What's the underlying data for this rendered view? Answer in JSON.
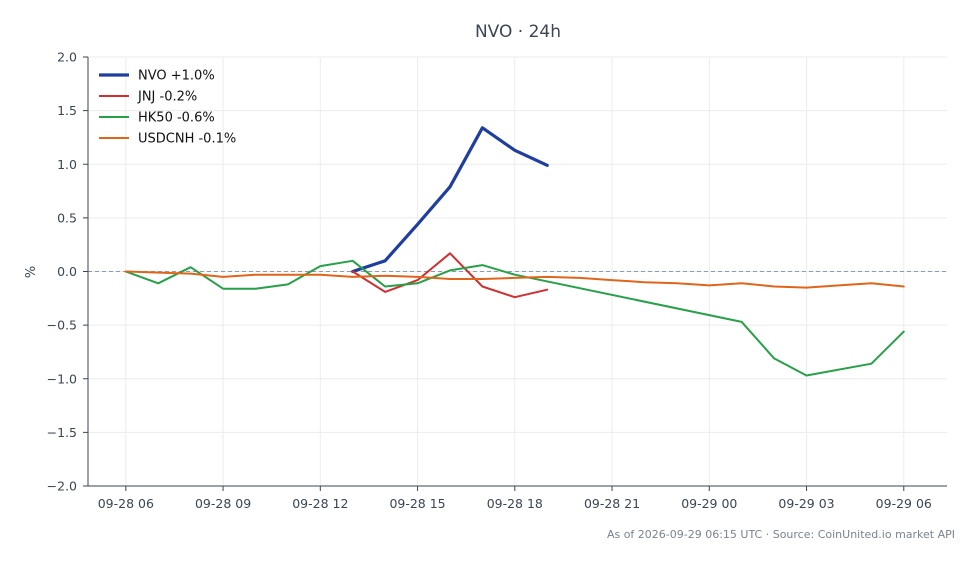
{
  "chart_data": {
    "type": "line",
    "title": "NVO · 24h",
    "xlabel": "",
    "ylabel": "%",
    "ylim": [
      -2.0,
      2.0
    ],
    "yticks": [
      -2.0,
      -1.5,
      -1.0,
      -0.5,
      0.0,
      0.5,
      1.0,
      1.5,
      2.0
    ],
    "ytick_labels": [
      "−2.0",
      "−1.5",
      "−1.0",
      "−0.5",
      "0.0",
      "0.5",
      "1.0",
      "1.5",
      "2.0"
    ],
    "xlim": [
      "2026-09-28 04:50",
      "2026-09-29 07:20"
    ],
    "xticks": [
      "2026-09-28 06:00",
      "2026-09-28 09:00",
      "2026-09-28 12:00",
      "2026-09-28 15:00",
      "2026-09-28 18:00",
      "2026-09-28 21:00",
      "2026-09-29 00:00",
      "2026-09-29 03:00",
      "2026-09-29 06:00"
    ],
    "xtick_labels": [
      "09-28 06",
      "09-28 09",
      "09-28 12",
      "09-28 15",
      "09-28 18",
      "09-28 21",
      "09-29 00",
      "09-29 03",
      "09-29 06"
    ],
    "grid": true,
    "zero_line": true,
    "legend_position": "top-left",
    "series": [
      {
        "name": "NVO +1.0%",
        "color": "#1f3fa0",
        "x": [
          "2026-09-28 13:00",
          "2026-09-28 14:00",
          "2026-09-28 15:00",
          "2026-09-28 16:00",
          "2026-09-28 17:00",
          "2026-09-28 18:00",
          "2026-09-28 19:00"
        ],
        "y": [
          0.0,
          0.1,
          0.44,
          0.79,
          1.34,
          1.13,
          0.99
        ]
      },
      {
        "name": "JNJ -0.2%",
        "color": "#d03030",
        "x": [
          "2026-09-28 13:00",
          "2026-09-28 14:00",
          "2026-09-28 15:00",
          "2026-09-28 16:00",
          "2026-09-28 17:00",
          "2026-09-28 18:00",
          "2026-09-28 19:00"
        ],
        "y": [
          0.0,
          -0.19,
          -0.08,
          0.17,
          -0.14,
          -0.24,
          -0.17
        ]
      },
      {
        "name": "HK50 -0.6%",
        "color": "#27a048",
        "x": [
          "2026-09-28 06:00",
          "2026-09-28 07:00",
          "2026-09-28 08:00",
          "2026-09-28 09:00",
          "2026-09-28 10:00",
          "2026-09-28 11:00",
          "2026-09-28 12:00",
          "2026-09-28 13:00",
          "2026-09-28 14:00",
          "2026-09-28 15:00",
          "2026-09-28 16:00",
          "2026-09-28 17:00",
          "2026-09-28 18:00",
          "2026-09-29 01:00",
          "2026-09-29 02:00",
          "2026-09-29 03:00",
          "2026-09-29 05:00",
          "2026-09-29 06:00"
        ],
        "y": [
          0.0,
          -0.11,
          0.04,
          -0.16,
          -0.16,
          -0.12,
          0.05,
          0.1,
          -0.14,
          -0.11,
          0.01,
          0.06,
          -0.03,
          -0.47,
          -0.81,
          -0.97,
          -0.86,
          -0.56
        ]
      },
      {
        "name": "USDCNH -0.1%",
        "color": "#e0651a",
        "x": [
          "2026-09-28 06:00",
          "2026-09-28 07:00",
          "2026-09-28 08:00",
          "2026-09-28 09:00",
          "2026-09-28 10:00",
          "2026-09-28 11:00",
          "2026-09-28 12:00",
          "2026-09-28 13:00",
          "2026-09-28 14:00",
          "2026-09-28 15:00",
          "2026-09-28 16:00",
          "2026-09-28 17:00",
          "2026-09-28 18:00",
          "2026-09-28 19:00",
          "2026-09-28 20:00",
          "2026-09-28 21:00",
          "2026-09-28 22:00",
          "2026-09-28 23:00",
          "2026-09-29 00:00",
          "2026-09-29 01:00",
          "2026-09-29 02:00",
          "2026-09-29 03:00",
          "2026-09-29 04:00",
          "2026-09-29 05:00",
          "2026-09-29 06:00"
        ],
        "y": [
          0.0,
          -0.01,
          -0.02,
          -0.05,
          -0.03,
          -0.03,
          -0.03,
          -0.05,
          -0.04,
          -0.05,
          -0.07,
          -0.07,
          -0.06,
          -0.05,
          -0.06,
          -0.08,
          -0.1,
          -0.11,
          -0.13,
          -0.11,
          -0.14,
          -0.15,
          -0.13,
          -0.11,
          -0.14
        ]
      }
    ]
  },
  "footer": "As of 2026-09-29 06:15 UTC · Source: CoinUnited.io market API"
}
